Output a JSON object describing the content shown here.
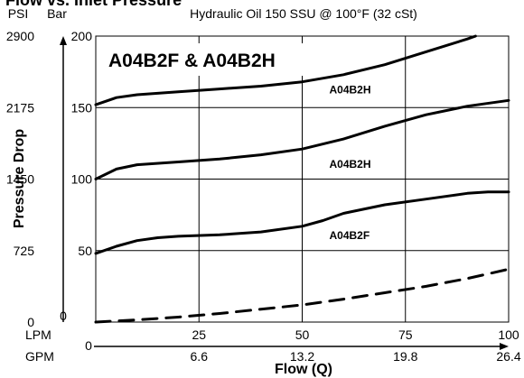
{
  "chart_data": {
    "type": "line",
    "title": "Flow vs. Inlet Pressure",
    "subtitle": "Hydraulic Oil 150 SSU @ 100°F (32 cSt)",
    "inset_title": "A04B2F & A04B2H",
    "ylabel": "Pressure Drop",
    "xlabel": "Flow (Q)",
    "x_unit_primary": "LPM",
    "x_unit_secondary": "GPM",
    "y_unit_primary": "Bar",
    "y_unit_secondary": "PSI",
    "xlim": [
      0,
      100
    ],
    "ylim": [
      0,
      200
    ],
    "grid": true,
    "x_ticks": [
      0,
      25,
      50,
      75,
      100
    ],
    "x_tick_labels": [
      "",
      "25",
      "50",
      "75",
      "100"
    ],
    "x_origin_label": "0",
    "gpm_tick_labels": [
      "0",
      "6.6",
      "13.2",
      "19.8",
      "26.4"
    ],
    "y_ticks": [
      0,
      50,
      100,
      150,
      200
    ],
    "y_tick_labels": [
      "",
      "50",
      "100",
      "150",
      "200"
    ],
    "psi_tick_labels": [
      "0",
      "725",
      "1450",
      "2175",
      "2900"
    ],
    "series": [
      {
        "name": "A04B2H",
        "style": "solid",
        "label_at": [
          50,
          160
        ],
        "x": [
          0,
          5,
          10,
          20,
          30,
          40,
          50,
          60,
          70,
          80,
          90,
          92
        ],
        "y": [
          152,
          157,
          159,
          161,
          163,
          165,
          168,
          173,
          180,
          189,
          198,
          200
        ]
      },
      {
        "name": "A04B2H",
        "style": "solid",
        "label_at": [
          50,
          108
        ],
        "x": [
          0,
          5,
          10,
          20,
          30,
          40,
          50,
          60,
          70,
          80,
          90,
          100
        ],
        "y": [
          100,
          107,
          110,
          112,
          114,
          117,
          121,
          128,
          137,
          145,
          151,
          155
        ]
      },
      {
        "name": "A04B2F",
        "style": "solid",
        "label_at": [
          50,
          58
        ],
        "x": [
          0,
          5,
          10,
          15,
          20,
          30,
          40,
          50,
          55,
          60,
          70,
          80,
          90,
          95,
          100
        ],
        "y": [
          48,
          53,
          57,
          59,
          60,
          61,
          63,
          67,
          71,
          76,
          82,
          86,
          90,
          91,
          91
        ]
      },
      {
        "name": "",
        "style": "dashed",
        "x": [
          0,
          10,
          20,
          30,
          40,
          50,
          60,
          70,
          80,
          90,
          100
        ],
        "y": [
          0,
          1.5,
          3.5,
          6,
          9,
          12,
          16,
          20.5,
          25,
          30.5,
          37
        ]
      }
    ]
  }
}
